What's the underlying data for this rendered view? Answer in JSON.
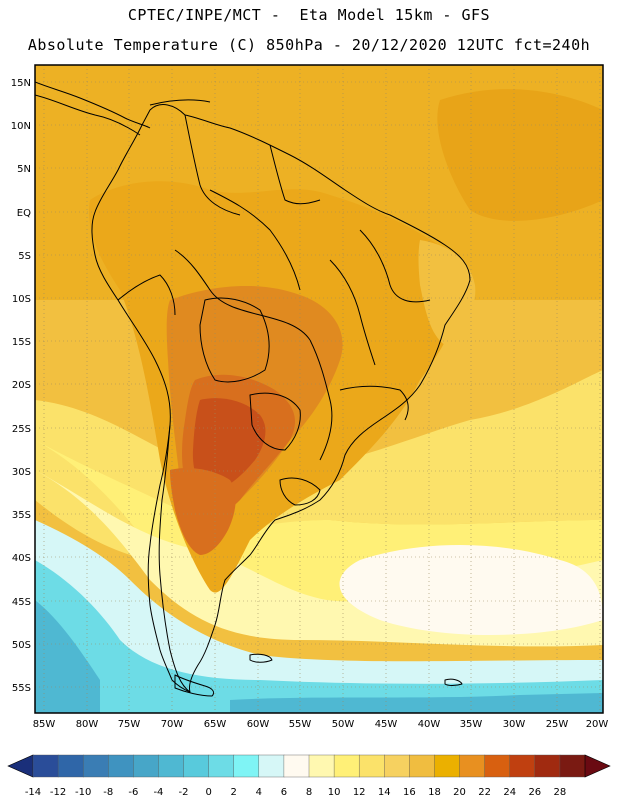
{
  "header": {
    "line1": "CPTEC/INPE/MCT -  Eta Model 15km - GFS",
    "line2": "Absolute Temperature (C) 850hPa - 20/12/2020 12UTC fct=240h"
  },
  "axes": {
    "lat_labels": [
      "15N",
      "10N",
      "5N",
      "EQ",
      "5S",
      "10S",
      "15S",
      "20S",
      "25S",
      "30S",
      "35S",
      "40S",
      "45S",
      "50S",
      "55S"
    ],
    "lon_labels": [
      "85W",
      "80W",
      "75W",
      "70W",
      "65W",
      "60W",
      "55W",
      "50W",
      "45W",
      "40W",
      "35W",
      "30W",
      "25W",
      "20W"
    ]
  },
  "colorbar": {
    "labels": [
      "-14",
      "-12",
      "-10",
      "-8",
      "-6",
      "-4",
      "-2",
      "0",
      "2",
      "4",
      "6",
      "8",
      "10",
      "12",
      "14",
      "16",
      "18",
      "20",
      "22",
      "24",
      "26",
      "28"
    ],
    "low_color": "#1a2f7a",
    "high_color": "#6a0a12",
    "colors": [
      "#2a4d99",
      "#2f66a8",
      "#3a7db4",
      "#3f93c0",
      "#47a6c8",
      "#4fb8d2",
      "#58cadc",
      "#6ddce6",
      "#7ff4f5",
      "#d6f7f7",
      "#fffaf0",
      "#fff8b0",
      "#fff077",
      "#fbe26a",
      "#f6d160",
      "#f0bd40",
      "#ebb000",
      "#e89020",
      "#d86010",
      "#c04010",
      "#a02a10",
      "#7a1a12"
    ]
  },
  "map_colors": {
    "ocean_warm": "#f2c040",
    "land_warm": "#eba81a",
    "land_hot": "#e08a20",
    "land_hotter": "#d86f1e",
    "land_hottest": "#c8501a",
    "subtropical": "#fbe26a",
    "mid_lat": "#fff077",
    "cool": "#fff8b0",
    "mild": "#fffaf0",
    "cold": "#d6f7f7",
    "colder": "#6ddce6",
    "coldest": "#4fb8d2"
  }
}
